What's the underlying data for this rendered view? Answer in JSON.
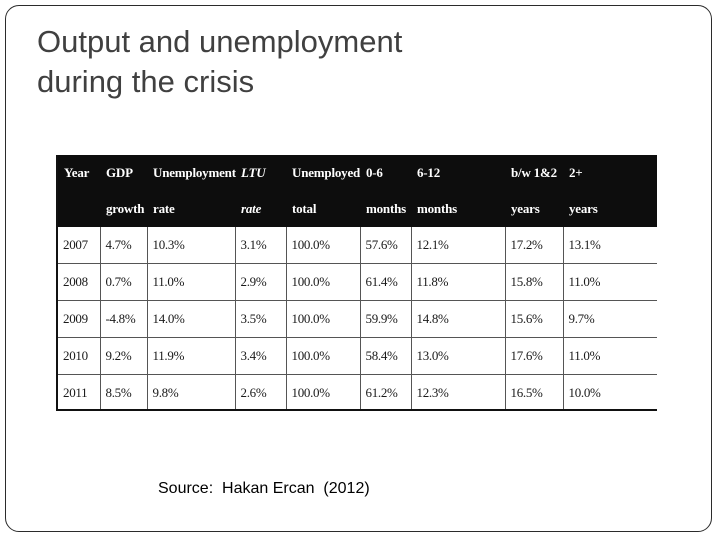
{
  "slide": {
    "title_line1": "Output and unemployment",
    "title_line2": "during the crisis",
    "source": "Source:  Hakan Ercan  (2012)"
  },
  "table": {
    "header_row1": [
      "Year",
      "GDP",
      "Unemployment",
      "LTU",
      "Unemployed",
      "0-6",
      "6-12",
      "b/w 1&2",
      "2+"
    ],
    "header_row2": [
      "",
      "growth",
      "rate",
      "rate",
      "total",
      "months",
      "months",
      "years",
      "years"
    ],
    "rows": [
      [
        "2007",
        "4.7%",
        "10.3%",
        "3.1%",
        "100.0%",
        "57.6%",
        "12.1%",
        "17.2%",
        "13.1%"
      ],
      [
        "2008",
        "0.7%",
        "11.0%",
        "2.9%",
        "100.0%",
        "61.4%",
        "11.8%",
        "15.8%",
        "11.0%"
      ],
      [
        "2009",
        "-4.8%",
        "14.0%",
        "3.5%",
        "100.0%",
        "59.9%",
        "14.8%",
        "15.6%",
        "9.7%"
      ],
      [
        "2010",
        "9.2%",
        "11.9%",
        "3.4%",
        "100.0%",
        "58.4%",
        "13.0%",
        "17.6%",
        "11.0%"
      ],
      [
        "2011",
        "8.5%",
        "9.8%",
        "2.6%",
        "100.0%",
        "61.2%",
        "12.3%",
        "16.5%",
        "10.0%"
      ]
    ]
  }
}
